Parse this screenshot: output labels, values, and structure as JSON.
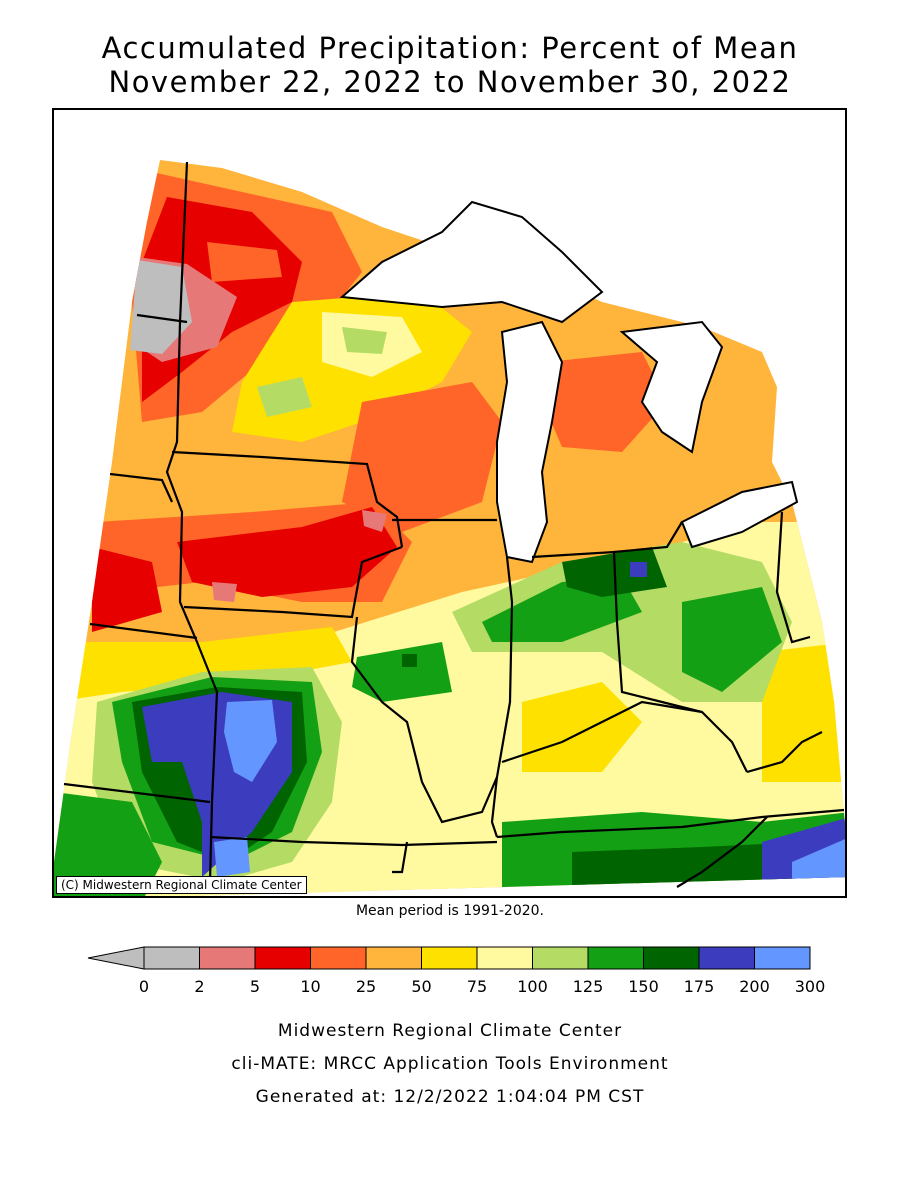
{
  "title_line1": "Accumulated Precipitation: Percent of Mean",
  "title_line2": "November 22, 2022 to November 30, 2022",
  "copyright": "(C) Midwestern Regional Climate Center",
  "mean_period": "Mean period is 1991-2020.",
  "legend": {
    "ticks": [
      "0",
      "2",
      "5",
      "10",
      "25",
      "50",
      "75",
      "100",
      "125",
      "150",
      "175",
      "200",
      "300"
    ],
    "colors": [
      "#bebebe",
      "#e67878",
      "#e60000",
      "#ff6428",
      "#ffb43c",
      "#ffe100",
      "#fffaa0",
      "#b4dc64",
      "#14a014",
      "#006400",
      "#3c3cbe",
      "#6496ff"
    ],
    "arrow_color": "#bebebe"
  },
  "map": {
    "water_color": "#ffffff",
    "region": "Upper Midwest / Great Lakes",
    "colors": {
      "gray": "#bebebe",
      "pink": "#e67878",
      "red": "#e60000",
      "orange_red": "#ff6428",
      "orange": "#ffb43c",
      "yellow": "#ffe100",
      "pale_yellow": "#fffaa0",
      "light_green": "#b4dc64",
      "green": "#14a014",
      "dark_green": "#006400",
      "dark_blue": "#3c3cbe",
      "light_blue": "#6496ff"
    }
  },
  "footer": {
    "line1": "Midwestern Regional Climate Center",
    "line2": "cli-MATE: MRCC Application Tools Environment",
    "line3": "Generated at: 12/2/2022 1:04:04 PM CST"
  }
}
